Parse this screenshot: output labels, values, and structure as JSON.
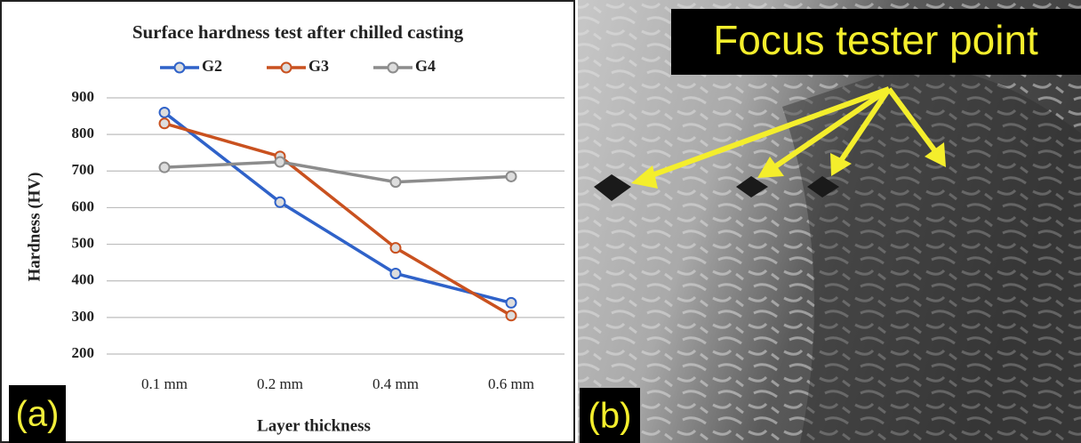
{
  "chart_data": {
    "type": "line",
    "title": "Surface hardness test after chilled casting",
    "y_label": "Hardness (HV)",
    "x_label": "Layer thickness",
    "categories": [
      "0.1 mm",
      "0.2 mm",
      "0.4 mm",
      "0.6 mm"
    ],
    "series": [
      {
        "name": "G2",
        "color": "#2f62c9",
        "values": [
          860,
          615,
          420,
          340
        ]
      },
      {
        "name": "G3",
        "color": "#c9511f",
        "values": [
          830,
          740,
          490,
          305
        ]
      },
      {
        "name": "G4",
        "color": "#8c8c8c",
        "values": [
          710,
          725,
          670,
          685
        ]
      }
    ],
    "ylim": [
      200,
      900
    ],
    "yticks": [
      200,
      300,
      400,
      500,
      600,
      700,
      800,
      900
    ],
    "grid": true,
    "legend": "top",
    "panel_label": "(a)"
  },
  "image_panel": {
    "panel_label": "(b)",
    "annotation": "Focus tester point"
  }
}
